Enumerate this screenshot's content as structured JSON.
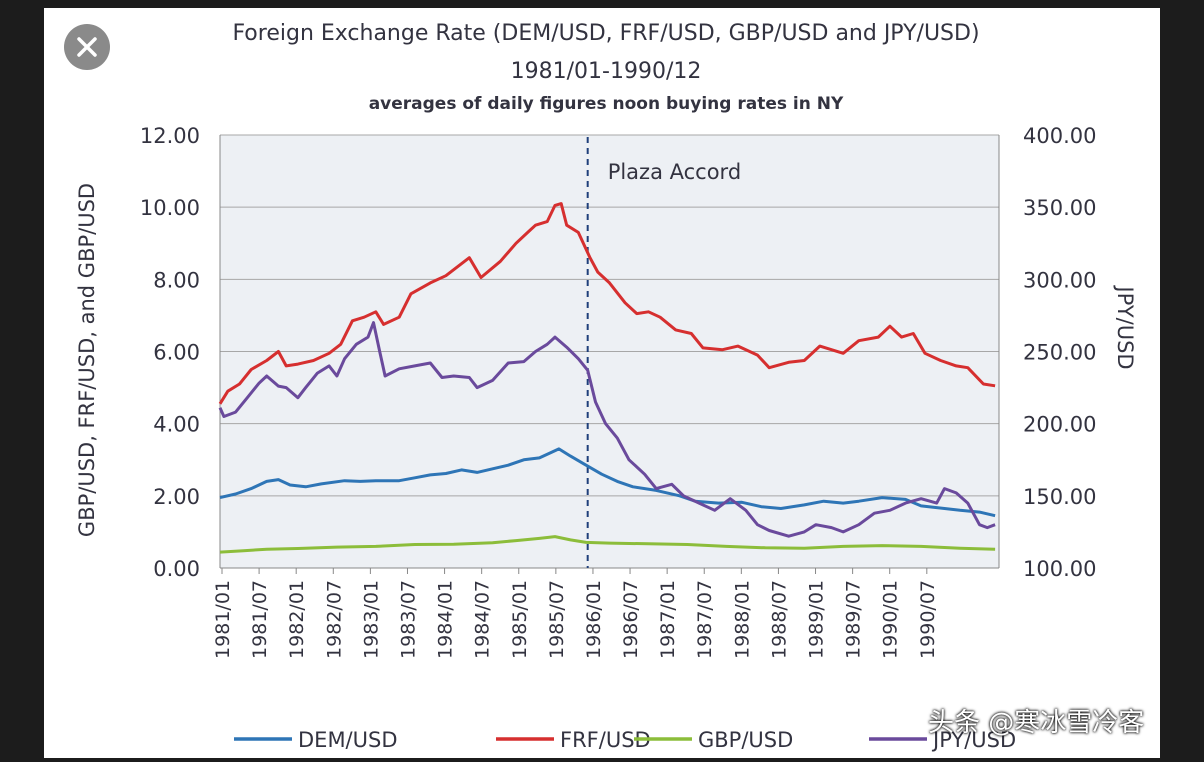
{
  "colors": {
    "DEM/USD": "#2e75b6",
    "FRF/USD": "#d62f2f",
    "GBP/USD": "#8cbd3a",
    "JPY/USD": "#6a4a9c",
    "plot_bg": "#edf0f4",
    "grid": "#a7a7a7",
    "text": "#333340"
  },
  "close_icon": "close-icon",
  "watermark": "头条 @寒冰雪冷客",
  "chart_data": {
    "type": "line",
    "title": "Foreign Exchange Rate (DEM/USD, FRF/USD,  GBP/USD and JPY/USD)",
    "subtitle": "1981/01-1990/12",
    "subtitle2": "averages of daily figures noon buying rates in NY",
    "ylabel": "GBP/USD, FRF/USD,  and GBP/USD",
    "y2label": "JPY/USD",
    "ylim": [
      0,
      12
    ],
    "y2lim": [
      100,
      400
    ],
    "y_ticks": [
      "0.00",
      "2.00",
      "4.00",
      "6.00",
      "8.00",
      "10.00",
      "12.00"
    ],
    "y2_ticks": [
      "100.00",
      "150.00",
      "200.00",
      "250.00",
      "300.00",
      "350.00",
      "400.00"
    ],
    "x_ticks": [
      "1981/01",
      "1981/07",
      "1982/01",
      "1982/07",
      "1983/01",
      "1983/07",
      "1984/01",
      "1984/07",
      "1985/01",
      "1985/07",
      "1986/01",
      "1986/07",
      "1987/01",
      "1987/07",
      "1988/01",
      "1988/07",
      "1989/01",
      "1989/07",
      "1990/01",
      "1990/07"
    ],
    "xlim": [
      1981.0,
      1991.0
    ],
    "annotation": {
      "label": "Plaza Accord",
      "x": 1985.72
    },
    "legend_position": "bottom",
    "series": [
      {
        "name": "DEM/USD",
        "axis": "left",
        "points": [
          [
            1981.0,
            1.95
          ],
          [
            1981.2,
            2.05
          ],
          [
            1981.4,
            2.2
          ],
          [
            1981.6,
            2.4
          ],
          [
            1981.75,
            2.45
          ],
          [
            1981.9,
            2.3
          ],
          [
            1982.1,
            2.25
          ],
          [
            1982.3,
            2.33
          ],
          [
            1982.6,
            2.42
          ],
          [
            1982.8,
            2.4
          ],
          [
            1983.0,
            2.42
          ],
          [
            1983.3,
            2.42
          ],
          [
            1983.5,
            2.5
          ],
          [
            1983.7,
            2.58
          ],
          [
            1983.9,
            2.62
          ],
          [
            1984.1,
            2.72
          ],
          [
            1984.3,
            2.65
          ],
          [
            1984.5,
            2.75
          ],
          [
            1984.7,
            2.85
          ],
          [
            1984.9,
            3.0
          ],
          [
            1985.1,
            3.05
          ],
          [
            1985.25,
            3.2
          ],
          [
            1985.35,
            3.3
          ],
          [
            1985.5,
            3.1
          ],
          [
            1985.7,
            2.85
          ],
          [
            1985.9,
            2.6
          ],
          [
            1986.1,
            2.4
          ],
          [
            1986.3,
            2.25
          ],
          [
            1986.6,
            2.15
          ],
          [
            1986.9,
            2.0
          ],
          [
            1987.1,
            1.85
          ],
          [
            1987.4,
            1.8
          ],
          [
            1987.7,
            1.82
          ],
          [
            1987.95,
            1.7
          ],
          [
            1988.2,
            1.65
          ],
          [
            1988.5,
            1.75
          ],
          [
            1988.75,
            1.85
          ],
          [
            1989.0,
            1.8
          ],
          [
            1989.2,
            1.85
          ],
          [
            1989.5,
            1.95
          ],
          [
            1989.8,
            1.9
          ],
          [
            1990.0,
            1.72
          ],
          [
            1990.3,
            1.65
          ],
          [
            1990.5,
            1.6
          ],
          [
            1990.75,
            1.55
          ],
          [
            1990.95,
            1.45
          ]
        ]
      },
      {
        "name": "FRF/USD",
        "axis": "left",
        "points": [
          [
            1981.0,
            4.55
          ],
          [
            1981.1,
            4.9
          ],
          [
            1981.25,
            5.1
          ],
          [
            1981.4,
            5.5
          ],
          [
            1981.6,
            5.75
          ],
          [
            1981.75,
            6.0
          ],
          [
            1981.85,
            5.6
          ],
          [
            1982.0,
            5.65
          ],
          [
            1982.2,
            5.75
          ],
          [
            1982.4,
            5.95
          ],
          [
            1982.55,
            6.2
          ],
          [
            1982.7,
            6.85
          ],
          [
            1982.85,
            6.95
          ],
          [
            1983.0,
            7.1
          ],
          [
            1983.1,
            6.75
          ],
          [
            1983.3,
            6.95
          ],
          [
            1983.45,
            7.6
          ],
          [
            1983.7,
            7.9
          ],
          [
            1983.9,
            8.1
          ],
          [
            1984.05,
            8.35
          ],
          [
            1984.2,
            8.6
          ],
          [
            1984.35,
            8.05
          ],
          [
            1984.6,
            8.5
          ],
          [
            1984.8,
            9.0
          ],
          [
            1984.95,
            9.3
          ],
          [
            1985.05,
            9.5
          ],
          [
            1985.2,
            9.6
          ],
          [
            1985.3,
            10.05
          ],
          [
            1985.38,
            10.1
          ],
          [
            1985.45,
            9.5
          ],
          [
            1985.6,
            9.3
          ],
          [
            1985.75,
            8.6
          ],
          [
            1985.85,
            8.2
          ],
          [
            1986.0,
            7.9
          ],
          [
            1986.2,
            7.35
          ],
          [
            1986.35,
            7.05
          ],
          [
            1986.5,
            7.1
          ],
          [
            1986.65,
            6.95
          ],
          [
            1986.85,
            6.6
          ],
          [
            1987.05,
            6.5
          ],
          [
            1987.2,
            6.1
          ],
          [
            1987.45,
            6.05
          ],
          [
            1987.65,
            6.15
          ],
          [
            1987.9,
            5.9
          ],
          [
            1988.05,
            5.55
          ],
          [
            1988.3,
            5.7
          ],
          [
            1988.5,
            5.75
          ],
          [
            1988.7,
            6.15
          ],
          [
            1988.85,
            6.05
          ],
          [
            1989.0,
            5.95
          ],
          [
            1989.2,
            6.3
          ],
          [
            1989.45,
            6.4
          ],
          [
            1989.6,
            6.7
          ],
          [
            1989.75,
            6.4
          ],
          [
            1989.9,
            6.5
          ],
          [
            1990.05,
            5.95
          ],
          [
            1990.25,
            5.75
          ],
          [
            1990.45,
            5.6
          ],
          [
            1990.6,
            5.55
          ],
          [
            1990.8,
            5.1
          ],
          [
            1990.95,
            5.05
          ]
        ]
      },
      {
        "name": "GBP/USD",
        "axis": "left",
        "points": [
          [
            1981.0,
            0.44
          ],
          [
            1981.3,
            0.48
          ],
          [
            1981.6,
            0.52
          ],
          [
            1982.0,
            0.54
          ],
          [
            1982.5,
            0.58
          ],
          [
            1983.0,
            0.6
          ],
          [
            1983.5,
            0.65
          ],
          [
            1984.0,
            0.66
          ],
          [
            1984.5,
            0.7
          ],
          [
            1984.8,
            0.76
          ],
          [
            1985.1,
            0.82
          ],
          [
            1985.3,
            0.87
          ],
          [
            1985.5,
            0.78
          ],
          [
            1985.7,
            0.71
          ],
          [
            1986.0,
            0.69
          ],
          [
            1986.5,
            0.67
          ],
          [
            1987.0,
            0.65
          ],
          [
            1987.5,
            0.6
          ],
          [
            1988.0,
            0.56
          ],
          [
            1988.5,
            0.55
          ],
          [
            1989.0,
            0.6
          ],
          [
            1989.5,
            0.62
          ],
          [
            1990.0,
            0.6
          ],
          [
            1990.5,
            0.55
          ],
          [
            1990.95,
            0.52
          ]
        ]
      },
      {
        "name": "JPY/USD",
        "axis": "right",
        "points": [
          [
            1981.0,
            211
          ],
          [
            1981.05,
            205
          ],
          [
            1981.2,
            208
          ],
          [
            1981.35,
            218
          ],
          [
            1981.5,
            228
          ],
          [
            1981.6,
            233
          ],
          [
            1981.75,
            226
          ],
          [
            1981.85,
            225
          ],
          [
            1982.0,
            218
          ],
          [
            1982.1,
            225
          ],
          [
            1982.25,
            235
          ],
          [
            1982.4,
            240
          ],
          [
            1982.5,
            233
          ],
          [
            1982.6,
            245
          ],
          [
            1982.75,
            255
          ],
          [
            1982.9,
            260
          ],
          [
            1982.97,
            270
          ],
          [
            1983.05,
            250
          ],
          [
            1983.12,
            233
          ],
          [
            1983.3,
            238
          ],
          [
            1983.5,
            240
          ],
          [
            1983.7,
            242
          ],
          [
            1983.85,
            232
          ],
          [
            1984.0,
            233
          ],
          [
            1984.2,
            232
          ],
          [
            1984.3,
            225
          ],
          [
            1984.5,
            230
          ],
          [
            1984.7,
            242
          ],
          [
            1984.9,
            243
          ],
          [
            1985.05,
            250
          ],
          [
            1985.2,
            255
          ],
          [
            1985.3,
            260
          ],
          [
            1985.45,
            253
          ],
          [
            1985.6,
            245
          ],
          [
            1985.72,
            237
          ],
          [
            1985.82,
            215
          ],
          [
            1985.95,
            200
          ],
          [
            1986.1,
            190
          ],
          [
            1986.25,
            175
          ],
          [
            1986.45,
            165
          ],
          [
            1986.6,
            155
          ],
          [
            1986.8,
            158
          ],
          [
            1986.95,
            150
          ],
          [
            1987.15,
            145
          ],
          [
            1987.35,
            140
          ],
          [
            1987.55,
            148
          ],
          [
            1987.75,
            140
          ],
          [
            1987.9,
            130
          ],
          [
            1988.05,
            126
          ],
          [
            1988.3,
            122
          ],
          [
            1988.5,
            125
          ],
          [
            1988.65,
            130
          ],
          [
            1988.85,
            128
          ],
          [
            1989.0,
            125
          ],
          [
            1989.2,
            130
          ],
          [
            1989.4,
            138
          ],
          [
            1989.6,
            140
          ],
          [
            1989.8,
            145
          ],
          [
            1990.0,
            148
          ],
          [
            1990.2,
            145
          ],
          [
            1990.3,
            155
          ],
          [
            1990.45,
            152
          ],
          [
            1990.6,
            145
          ],
          [
            1990.75,
            130
          ],
          [
            1990.85,
            128
          ],
          [
            1990.95,
            130
          ]
        ]
      }
    ]
  }
}
